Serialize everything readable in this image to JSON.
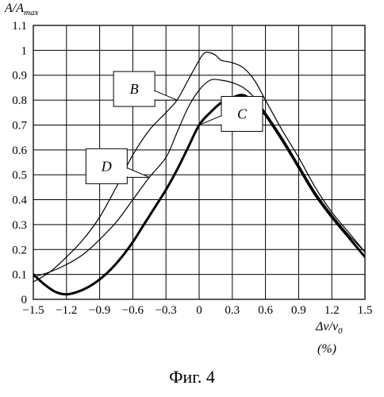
{
  "chart_data": {
    "type": "line",
    "ylabel": "A/A_max",
    "xlabel": "Δν/ν0 (%)",
    "xlim": [
      -1.5,
      1.5
    ],
    "ylim": [
      0,
      1.1
    ],
    "grid": true,
    "xticks": [
      -1.5,
      -1.2,
      -0.9,
      -0.6,
      -0.3,
      0,
      0.3,
      0.6,
      0.9,
      1.2,
      1.5
    ],
    "xtick_labels": [
      "−1.5",
      "−1.2",
      "−0.9",
      "−0.6",
      "−0.3",
      "0",
      "0.3",
      "0.6",
      "0.9",
      "1.2",
      "1.5"
    ],
    "yticks": [
      0,
      0.1,
      0.2,
      0.3,
      0.4,
      0.5,
      0.6,
      0.7,
      0.8,
      0.9,
      1,
      1.1
    ],
    "ytick_labels": [
      "0",
      "0.1",
      "0.2",
      "0.3",
      "0.4",
      "0.5",
      "0.6",
      "0.7",
      "0.8",
      "0.9",
      "1",
      "1.1"
    ],
    "series": [
      {
        "name": "B",
        "color": "#000000",
        "x": [
          -1.5,
          -1.35,
          -1.2,
          -1.05,
          -0.9,
          -0.75,
          -0.6,
          -0.45,
          -0.3,
          -0.2,
          -0.1,
          0.0,
          0.05,
          0.1,
          0.15,
          0.2,
          0.3,
          0.4,
          0.5,
          0.6,
          0.75,
          0.9,
          1.05,
          1.2,
          1.35,
          1.5
        ],
        "y": [
          0.07,
          0.11,
          0.17,
          0.24,
          0.33,
          0.45,
          0.58,
          0.68,
          0.75,
          0.8,
          0.88,
          0.96,
          0.99,
          0.99,
          0.98,
          0.96,
          0.95,
          0.93,
          0.88,
          0.8,
          0.68,
          0.57,
          0.45,
          0.35,
          0.27,
          0.19
        ]
      },
      {
        "name": "D",
        "color": "#000000",
        "x": [
          -1.5,
          -1.35,
          -1.2,
          -1.05,
          -0.9,
          -0.75,
          -0.6,
          -0.45,
          -0.3,
          -0.2,
          -0.1,
          0.0,
          0.1,
          0.2,
          0.3,
          0.4,
          0.5,
          0.6,
          0.75,
          0.9,
          1.05,
          1.2,
          1.35,
          1.5
        ],
        "y": [
          0.09,
          0.11,
          0.14,
          0.18,
          0.24,
          0.31,
          0.4,
          0.49,
          0.57,
          0.67,
          0.77,
          0.84,
          0.88,
          0.88,
          0.87,
          0.85,
          0.81,
          0.75,
          0.65,
          0.54,
          0.43,
          0.34,
          0.26,
          0.19
        ]
      },
      {
        "name": "C",
        "color": "#000000",
        "bold": true,
        "x": [
          -1.5,
          -1.4,
          -1.3,
          -1.2,
          -1.1,
          -1.0,
          -0.9,
          -0.8,
          -0.7,
          -0.6,
          -0.5,
          -0.4,
          -0.3,
          -0.2,
          -0.1,
          0.0,
          0.1,
          0.2,
          0.3,
          0.4,
          0.5,
          0.6,
          0.75,
          0.9,
          1.05,
          1.2,
          1.35,
          1.5
        ],
        "y": [
          0.1,
          0.06,
          0.03,
          0.02,
          0.03,
          0.05,
          0.08,
          0.12,
          0.17,
          0.23,
          0.3,
          0.37,
          0.44,
          0.52,
          0.61,
          0.7,
          0.75,
          0.79,
          0.81,
          0.82,
          0.79,
          0.74,
          0.64,
          0.53,
          0.42,
          0.33,
          0.25,
          0.17
        ]
      }
    ],
    "callouts": [
      {
        "series": "B",
        "label": "B",
        "point": [
          -0.2,
          0.8
        ],
        "box_at": "left"
      },
      {
        "series": "D",
        "label": "D",
        "point": [
          -0.45,
          0.49
        ],
        "box_at": "left"
      },
      {
        "series": "C",
        "label": "C",
        "point": [
          0.0,
          0.7
        ],
        "box_at": "right"
      }
    ]
  },
  "caption": "Фиг. 4"
}
